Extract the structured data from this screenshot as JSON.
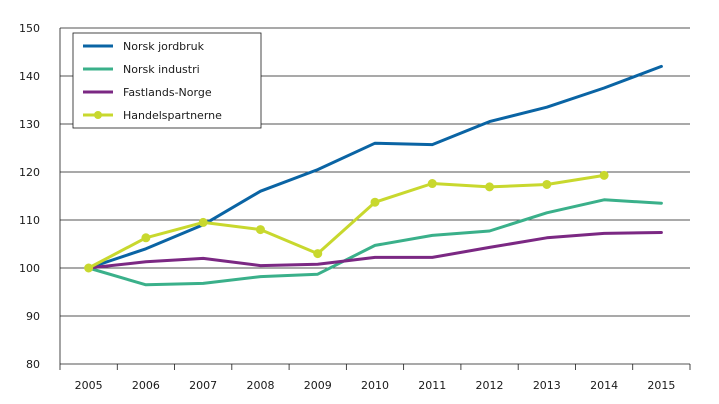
{
  "chart_data": {
    "type": "line",
    "x": [
      "2005",
      "2006",
      "2007",
      "2008",
      "2009",
      "2010",
      "2011",
      "2012",
      "2013",
      "2014",
      "2015"
    ],
    "ylim": [
      80,
      150
    ],
    "yticks": [
      80,
      90,
      100,
      110,
      120,
      130,
      140,
      150
    ],
    "grid": "horizontal",
    "legend_position": "top-left",
    "series": [
      {
        "name": "Norsk jordbruk",
        "color": "#0a64a4",
        "marker": "none",
        "values": [
          100,
          104,
          109,
          116,
          120.5,
          126,
          125.7,
          130.5,
          133.5,
          137.5,
          142
        ]
      },
      {
        "name": "Norsk industri",
        "color": "#3ab08a",
        "marker": "none",
        "values": [
          100,
          96.5,
          96.8,
          98.2,
          98.7,
          104.7,
          106.8,
          107.7,
          111.5,
          114.2,
          113.5
        ]
      },
      {
        "name": "Fastlands-Norge",
        "color": "#7b2883",
        "marker": "none",
        "values": [
          100,
          101.3,
          102,
          100.5,
          100.8,
          102.2,
          102.2,
          104.3,
          106.3,
          107.2,
          107.4
        ]
      },
      {
        "name": "Handelspartnerne",
        "color": "#c8d82e",
        "marker": "circle",
        "values": [
          100,
          106.3,
          109.5,
          108,
          103,
          113.7,
          117.6,
          116.9,
          117.4,
          119.3,
          null
        ]
      }
    ]
  }
}
